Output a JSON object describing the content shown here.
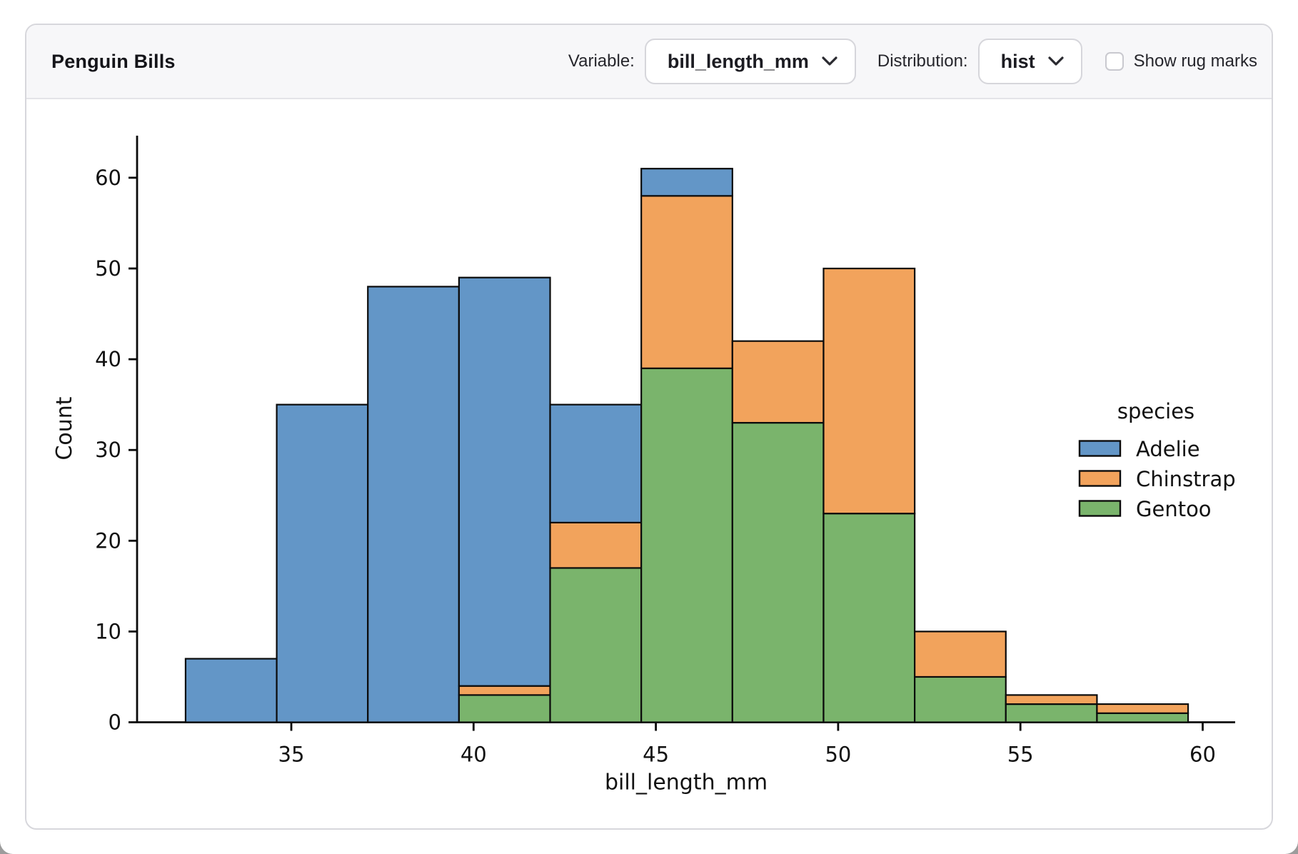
{
  "header": {
    "title": "Penguin Bills",
    "variable_label": "Variable:",
    "variable_value": "bill_length_mm",
    "distribution_label": "Distribution:",
    "distribution_value": "hist",
    "rug_label": "Show rug marks",
    "rug_checked": false
  },
  "chart_data": {
    "type": "bar",
    "subtype": "stacked-histogram",
    "title": "",
    "xlabel": "bill_length_mm",
    "ylabel": "Count",
    "xlim": [
      30.8,
      60.9
    ],
    "ylim": [
      0,
      64.6
    ],
    "xticks": [
      35,
      40,
      45,
      50,
      55,
      60
    ],
    "yticks": [
      0,
      10,
      20,
      30,
      40,
      50,
      60
    ],
    "grid": false,
    "bin_edges": [
      32.1,
      34.6,
      37.1,
      39.6,
      42.1,
      44.6,
      47.1,
      49.6,
      52.1,
      54.6,
      57.1,
      59.6
    ],
    "series": [
      {
        "name": "Gentoo",
        "color": "#7ab46c",
        "values": [
          0,
          0,
          0,
          3,
          17,
          39,
          33,
          23,
          5,
          2,
          1
        ]
      },
      {
        "name": "Chinstrap",
        "color": "#f2a35c",
        "values": [
          0,
          0,
          0,
          1,
          5,
          19,
          9,
          27,
          5,
          1,
          1
        ]
      },
      {
        "name": "Adelie",
        "color": "#6396c7",
        "values": [
          7,
          35,
          48,
          45,
          13,
          3,
          0,
          0,
          0,
          0,
          0
        ]
      }
    ],
    "bin_totals": [
      7,
      35,
      48,
      49,
      35,
      61,
      42,
      50,
      10,
      3,
      2
    ],
    "legend": {
      "title": "species",
      "position": "right",
      "entries": [
        {
          "label": "Adelie",
          "color": "#6396c7"
        },
        {
          "label": "Chinstrap",
          "color": "#f2a35c"
        },
        {
          "label": "Gentoo",
          "color": "#7ab46c"
        }
      ]
    }
  }
}
